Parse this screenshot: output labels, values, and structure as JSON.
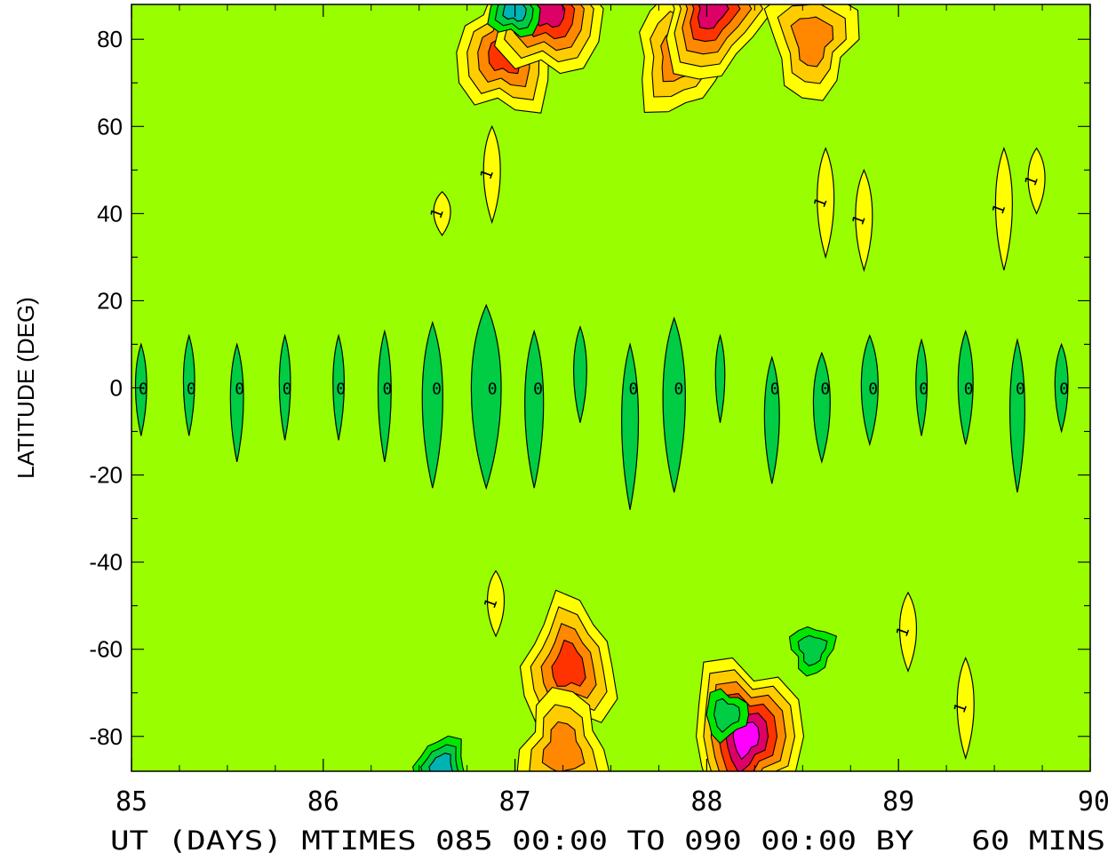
{
  "chart_data": {
    "type": "heatmap",
    "title": "",
    "xlabel": "UT (DAYS) MTIMES 085 00:00 TO 090 00:00 BY   60 MINS",
    "ylabel": "LATITUDE (DEG)",
    "xlim": [
      85,
      90
    ],
    "ylim": [
      -88,
      88
    ],
    "x_ticks": [
      "85",
      "86",
      "87",
      "88",
      "89",
      "90"
    ],
    "y_ticks": [
      "80",
      "60",
      "40",
      "20",
      "0",
      "-20",
      "-40",
      "-60",
      "-80"
    ],
    "x_tick_values": [
      85,
      86,
      87,
      88,
      89,
      90
    ],
    "y_tick_values": [
      80,
      60,
      40,
      20,
      0,
      -20,
      -40,
      -60,
      -80
    ],
    "grid": false,
    "colors": {
      "background_level": "#99ff00",
      "negative_1": "#00e600",
      "negative_2": "#00cc44",
      "negative_3": "#00b3b3",
      "positive_1": "#ffff00",
      "positive_2": "#ffcc00",
      "positive_3": "#ff8800",
      "positive_4": "#ff3300",
      "positive_5": "#dd0066",
      "positive_6": "#ff00ff",
      "line": "#000000"
    },
    "contour_labels": [
      "0",
      "1"
    ],
    "equatorial_minima": [
      {
        "x": 85.05,
        "lat": 0,
        "half_width": 0.03,
        "lat_top": 10,
        "lat_bottom": -11,
        "label": "0"
      },
      {
        "x": 85.3,
        "lat": 0,
        "half_width": 0.03,
        "lat_top": 12,
        "lat_bottom": -11,
        "label": "0"
      },
      {
        "x": 85.55,
        "lat": 0,
        "half_width": 0.035,
        "lat_top": 10,
        "lat_bottom": -17,
        "label": "0"
      },
      {
        "x": 85.8,
        "lat": 0,
        "half_width": 0.03,
        "lat_top": 12,
        "lat_bottom": -12,
        "label": "0"
      },
      {
        "x": 86.08,
        "lat": 0,
        "half_width": 0.03,
        "lat_top": 12,
        "lat_bottom": -12,
        "label": "0"
      },
      {
        "x": 86.32,
        "lat": 0,
        "half_width": 0.035,
        "lat_top": 13,
        "lat_bottom": -17,
        "label": "0"
      },
      {
        "x": 86.57,
        "lat": 0,
        "half_width": 0.055,
        "lat_top": 15,
        "lat_bottom": -23,
        "label": "0"
      },
      {
        "x": 86.85,
        "lat": 0,
        "half_width": 0.08,
        "lat_top": 19,
        "lat_bottom": -23,
        "label": "0"
      },
      {
        "x": 87.1,
        "lat": 0,
        "half_width": 0.05,
        "lat_top": 13,
        "lat_bottom": -23,
        "label": "0"
      },
      {
        "x": 87.34,
        "lat": 0,
        "half_width": 0.035,
        "lat_top": 14,
        "lat_bottom": -8,
        "label": ""
      },
      {
        "x": 87.6,
        "lat": 0,
        "half_width": 0.045,
        "lat_top": 10,
        "lat_bottom": -28,
        "label": "0"
      },
      {
        "x": 87.83,
        "lat": 0,
        "half_width": 0.06,
        "lat_top": 16,
        "lat_bottom": -24,
        "label": "0"
      },
      {
        "x": 88.07,
        "lat": 0,
        "half_width": 0.025,
        "lat_top": 12,
        "lat_bottom": -8,
        "label": ""
      },
      {
        "x": 88.34,
        "lat": 0,
        "half_width": 0.04,
        "lat_top": 7,
        "lat_bottom": -22,
        "label": "0"
      },
      {
        "x": 88.6,
        "lat": 0,
        "half_width": 0.045,
        "lat_top": 8,
        "lat_bottom": -17,
        "label": "0"
      },
      {
        "x": 88.85,
        "lat": 0,
        "half_width": 0.045,
        "lat_top": 12,
        "lat_bottom": -13,
        "label": "0"
      },
      {
        "x": 89.12,
        "lat": 0,
        "half_width": 0.03,
        "lat_top": 11,
        "lat_bottom": -11,
        "label": "0"
      },
      {
        "x": 89.35,
        "lat": 0,
        "half_width": 0.04,
        "lat_top": 13,
        "lat_bottom": -13,
        "label": "0"
      },
      {
        "x": 89.62,
        "lat": 0,
        "half_width": 0.04,
        "lat_top": 11,
        "lat_bottom": -24,
        "label": "0"
      },
      {
        "x": 89.85,
        "lat": 0,
        "half_width": 0.035,
        "lat_top": 10,
        "lat_bottom": -10,
        "label": "0"
      }
    ],
    "polar_maxima": [
      {
        "x": 86.95,
        "lat": 77,
        "peak_level": 4
      },
      {
        "x": 87.18,
        "lat": 87,
        "peak_level": 5
      },
      {
        "x": 87.85,
        "lat": 76,
        "peak_level": 3
      },
      {
        "x": 88.02,
        "lat": 87,
        "peak_level": 5
      },
      {
        "x": 88.55,
        "lat": 80,
        "peak_level": 3
      },
      {
        "x": 87.28,
        "lat": -64,
        "peak_level": 4
      },
      {
        "x": 88.2,
        "lat": -80,
        "peak_level": 6
      },
      {
        "x": 87.25,
        "lat": -83,
        "peak_level": 3
      }
    ],
    "polar_minima": [
      {
        "x": 87.0,
        "lat": 87,
        "peak_level": 3
      },
      {
        "x": 86.62,
        "lat": -87,
        "peak_level": 3
      },
      {
        "x": 88.1,
        "lat": -75,
        "peak_level": 2
      },
      {
        "x": 88.55,
        "lat": -60,
        "peak_level": 2
      }
    ],
    "midlatitude_ridges": [
      {
        "x": 86.62,
        "lat_top": 45,
        "lat_bottom": 35,
        "label": "1"
      },
      {
        "x": 86.88,
        "lat_top": 60,
        "lat_bottom": 38,
        "label": "1"
      },
      {
        "x": 88.62,
        "lat_top": 55,
        "lat_bottom": 30,
        "label": "1"
      },
      {
        "x": 88.82,
        "lat_top": 50,
        "lat_bottom": 27,
        "label": "1"
      },
      {
        "x": 89.55,
        "lat_top": 55,
        "lat_bottom": 27,
        "label": "1"
      },
      {
        "x": 89.72,
        "lat_top": 55,
        "lat_bottom": 40,
        "label": "1"
      },
      {
        "x": 86.9,
        "lat_top": -42,
        "lat_bottom": -57,
        "label": "1"
      },
      {
        "x": 89.05,
        "lat_top": -47,
        "lat_bottom": -65,
        "label": "1"
      },
      {
        "x": 89.35,
        "lat_top": -62,
        "lat_bottom": -85,
        "label": "1"
      }
    ]
  }
}
